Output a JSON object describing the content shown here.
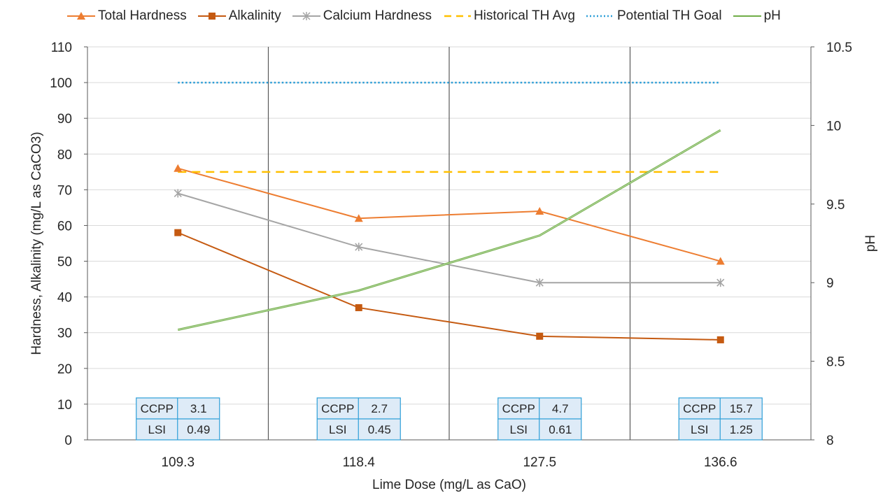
{
  "chart_data": {
    "type": "line",
    "categories": [
      "109.3",
      "118.4",
      "127.5",
      "136.6"
    ],
    "xlabel": "Lime Dose (mg/L as CaO)",
    "ylabel": "Hardness, Alkalinity (mg/L as CaCO3)",
    "y2label": "pH",
    "ylim": [
      0,
      110
    ],
    "yticks": [
      0,
      10,
      20,
      30,
      40,
      50,
      60,
      70,
      80,
      90,
      100,
      110
    ],
    "y2lim": [
      8,
      10.5
    ],
    "y2ticks": [
      "8",
      "8.5",
      "9",
      "9.5",
      "10",
      "10.5"
    ],
    "series": [
      {
        "name": "Total Hardness",
        "axis": "left",
        "values": [
          76,
          62,
          64,
          50
        ],
        "color": "#ED7D31",
        "marker": "triangle"
      },
      {
        "name": "Alkalinity",
        "axis": "left",
        "values": [
          58,
          37,
          29,
          28
        ],
        "color": "#C55A11",
        "marker": "square"
      },
      {
        "name": "Calcium Hardness",
        "axis": "left",
        "values": [
          69,
          54,
          44,
          44
        ],
        "color": "#A5A5A5",
        "marker": "star"
      },
      {
        "name": "Historical TH Avg",
        "axis": "left",
        "values": [
          75,
          75,
          75,
          75
        ],
        "color": "#FFC000",
        "marker": "dash"
      },
      {
        "name": "Potential TH Goal",
        "axis": "left",
        "values": [
          100,
          100,
          100,
          100
        ],
        "color": "#2E9FD8",
        "marker": "dot"
      },
      {
        "name": "pH",
        "axis": "right",
        "values": [
          8.7,
          8.95,
          9.3,
          9.97
        ],
        "color": "#70AD47",
        "marker": "line"
      }
    ],
    "annotations": [
      {
        "ccpp_label": "CCPP",
        "ccpp": "3.1",
        "lsi_label": "LSI",
        "lsi": "0.49"
      },
      {
        "ccpp_label": "CCPP",
        "ccpp": "2.7",
        "lsi_label": "LSI",
        "lsi": "0.45"
      },
      {
        "ccpp_label": "CCPP",
        "ccpp": "4.7",
        "lsi_label": "LSI",
        "lsi": "0.61"
      },
      {
        "ccpp_label": "CCPP",
        "ccpp": "15.7",
        "lsi_label": "LSI",
        "lsi": "1.25"
      }
    ],
    "grid": true,
    "legend_position": "top"
  }
}
